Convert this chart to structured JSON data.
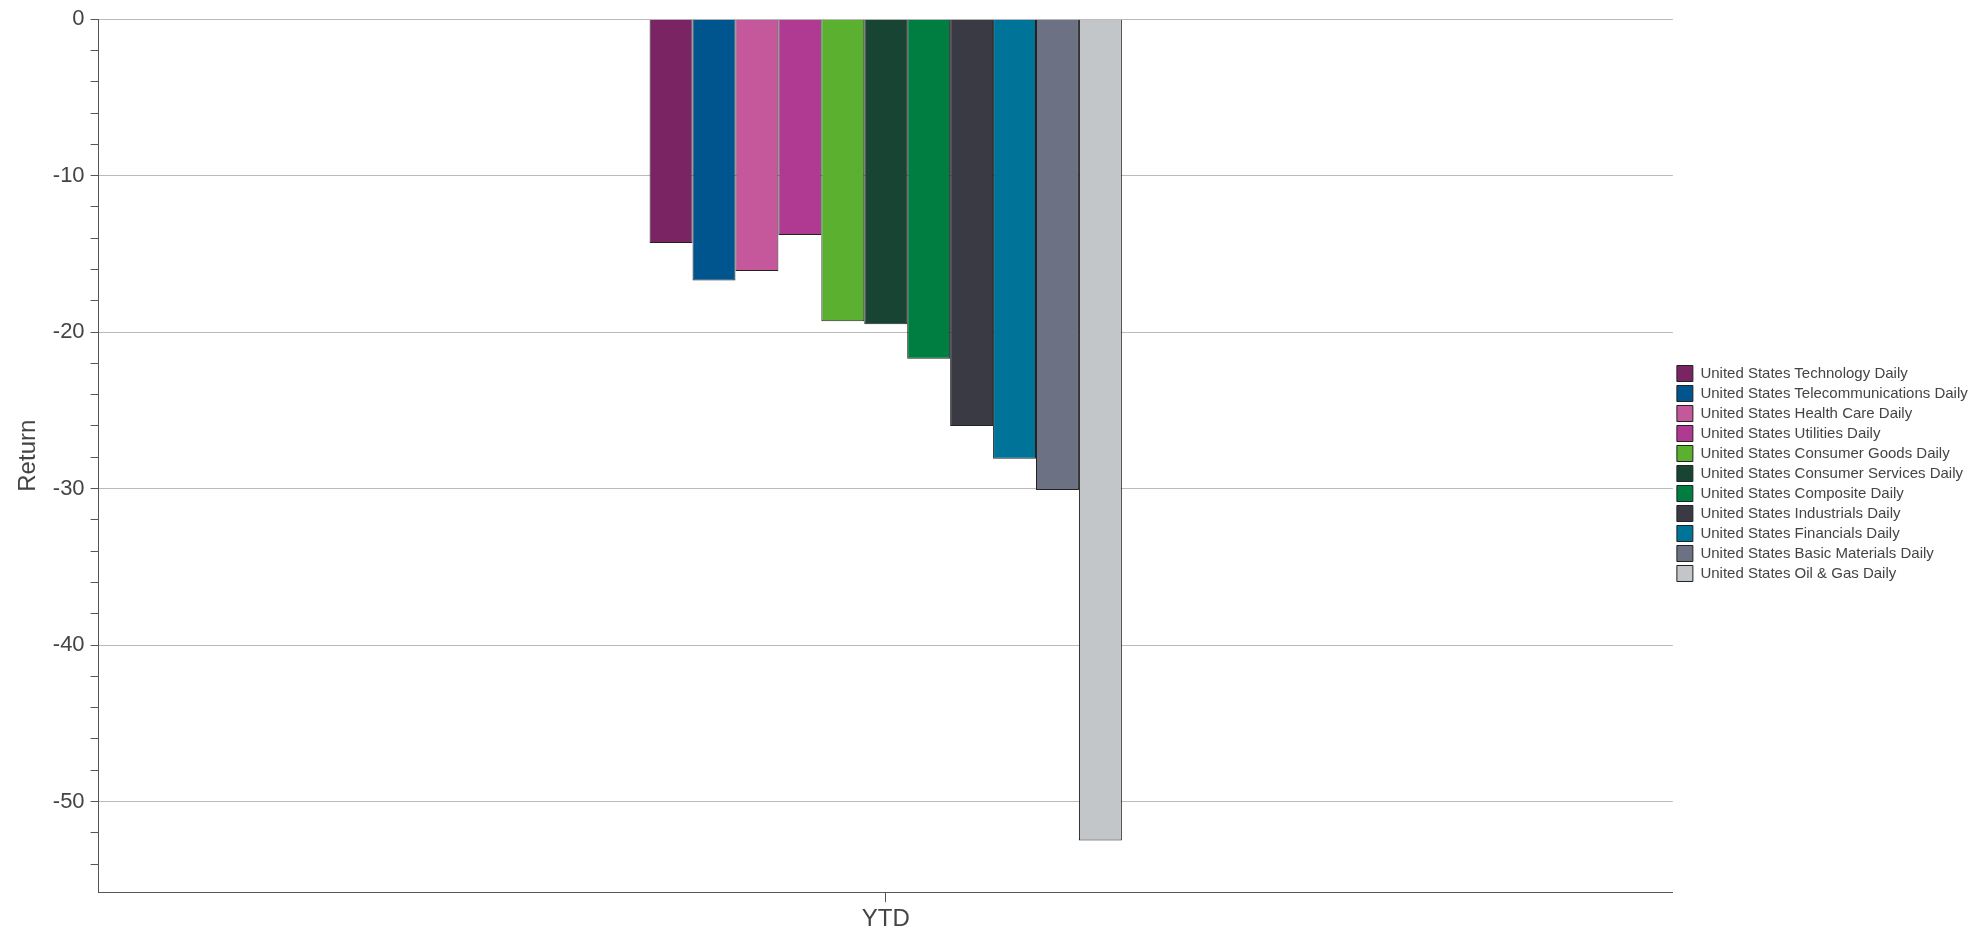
{
  "chart_data": {
    "type": "bar",
    "ylabel": "Return",
    "categories": [
      "YTD"
    ],
    "series": [
      {
        "name": "United States Technology Daily",
        "color": "#7b2464",
        "values": [
          -14.3
        ]
      },
      {
        "name": "United States Telecommunications Daily",
        "color": "#00558f",
        "values": [
          -16.7
        ]
      },
      {
        "name": "United States Health Care Daily",
        "color": "#c4589b",
        "values": [
          -16.1
        ]
      },
      {
        "name": "United States Utilities Daily",
        "color": "#b03a91",
        "values": [
          -13.8
        ]
      },
      {
        "name": "United States Consumer Goods Daily",
        "color": "#5bb030",
        "values": [
          -19.3
        ]
      },
      {
        "name": "United States Consumer Services Daily",
        "color": "#184434",
        "values": [
          -19.5
        ]
      },
      {
        "name": "United States Composite Daily",
        "color": "#007d40",
        "values": [
          -21.7
        ]
      },
      {
        "name": "United States Industrials Daily",
        "color": "#3a3a44",
        "values": [
          -26.0
        ]
      },
      {
        "name": "United States Financials Daily",
        "color": "#007398",
        "values": [
          -28.1
        ]
      },
      {
        "name": "United States Basic Materials Daily",
        "color": "#6c7183",
        "values": [
          -30.1
        ]
      },
      {
        "name": "United States Oil & Gas Daily",
        "color": "#c2c6c9",
        "values": [
          -52.5
        ]
      }
    ],
    "ylim": [
      -55.8,
      0
    ],
    "yticks": [
      0,
      {
        "value": -2,
        "label": null
      },
      {
        "value": -4,
        "label": null
      },
      {
        "value": -6,
        "label": null
      },
      {
        "value": -8,
        "label": null
      },
      -10,
      {
        "value": -12,
        "label": null
      },
      {
        "value": -14,
        "label": null
      },
      {
        "value": -16,
        "label": null
      },
      {
        "value": -18,
        "label": null
      },
      -20,
      {
        "value": -22,
        "label": null
      },
      {
        "value": -24,
        "label": null
      },
      {
        "value": -26,
        "label": null
      },
      {
        "value": -28,
        "label": null
      },
      -30,
      {
        "value": -32,
        "label": null
      },
      {
        "value": -34,
        "label": null
      },
      {
        "value": -36,
        "label": null
      },
      {
        "value": -38,
        "label": null
      },
      -40,
      {
        "value": -42,
        "label": null
      },
      {
        "value": -44,
        "label": null
      },
      {
        "value": -46,
        "label": null
      },
      {
        "value": -48,
        "label": null
      },
      -50,
      {
        "value": -52,
        "label": null
      },
      {
        "value": -54,
        "label": null
      }
    ],
    "grid": "y",
    "legend": "right"
  }
}
